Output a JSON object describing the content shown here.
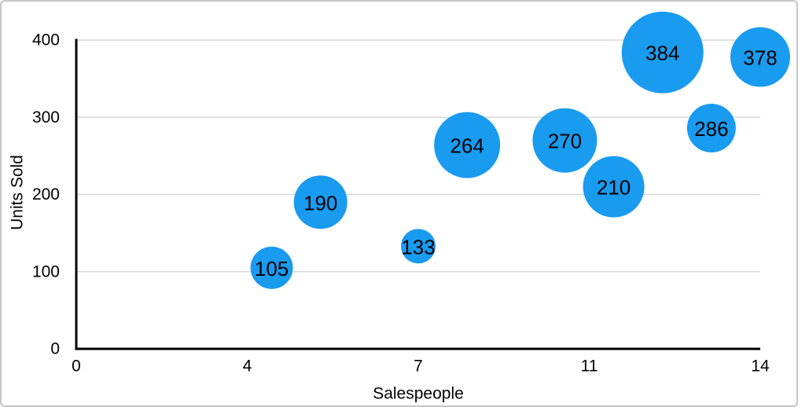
{
  "figure": {
    "background_color": "#ffffff",
    "border_color": "#c6c6c6"
  },
  "chart_data": {
    "type": "scatter",
    "variant": "bubble",
    "xlabel": "Salespeople",
    "ylabel": "Units Sold",
    "xlim": [
      0,
      14
    ],
    "ylim": [
      0,
      400
    ],
    "x_tick_labels": [
      "0",
      "4",
      "7",
      "11",
      "14"
    ],
    "y_tick_labels": [
      "0",
      "100",
      "200",
      "300",
      "400"
    ],
    "grid": "horizontal",
    "legend": "none",
    "points": [
      {
        "x": 4,
        "y": 105,
        "label": "105",
        "radius_px": 27
      },
      {
        "x": 5,
        "y": 190,
        "label": "190",
        "radius_px": 34
      },
      {
        "x": 7,
        "y": 133,
        "label": "133",
        "radius_px": 22
      },
      {
        "x": 8,
        "y": 264,
        "label": "264",
        "radius_px": 42
      },
      {
        "x": 10,
        "y": 270,
        "label": "270",
        "radius_px": 41
      },
      {
        "x": 11,
        "y": 210,
        "label": "210",
        "radius_px": 39
      },
      {
        "x": 12,
        "y": 384,
        "label": "384",
        "radius_px": 52
      },
      {
        "x": 13,
        "y": 286,
        "label": "286",
        "radius_px": 31
      },
      {
        "x": 14,
        "y": 378,
        "label": "378",
        "radius_px": 38
      }
    ],
    "colors": {
      "bubble_fill": "#199BF0",
      "bubble_label": "#000000",
      "axis_line": "#000000",
      "gridline": "#d8d8d8",
      "tick_label": "#000000",
      "axis_title": "#000000"
    }
  }
}
